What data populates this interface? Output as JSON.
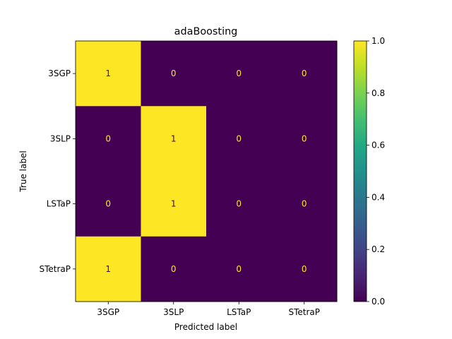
{
  "chart_data": {
    "type": "heatmap",
    "title": "adaBoosting",
    "xlabel": "Predicted label",
    "ylabel": "True label",
    "x_categories": [
      "3SGP",
      "3SLP",
      "LSTaP",
      "STetraP"
    ],
    "y_categories": [
      "3SGP",
      "3SLP",
      "LSTaP",
      "STetraP"
    ],
    "values": [
      [
        1,
        0,
        0,
        0
      ],
      [
        0,
        1,
        0,
        0
      ],
      [
        0,
        1,
        0,
        0
      ],
      [
        1,
        0,
        0,
        0
      ]
    ],
    "colormap": "viridis",
    "color_low": "#440154",
    "color_high": "#fde725",
    "colorbar": {
      "range": [
        0.0,
        1.0
      ],
      "ticks": [
        0.0,
        0.2,
        0.4,
        0.6,
        0.8,
        1.0
      ],
      "tick_labels": [
        "0.0",
        "0.2",
        "0.4",
        "0.6",
        "0.8",
        "1.0"
      ]
    },
    "grid": false
  }
}
